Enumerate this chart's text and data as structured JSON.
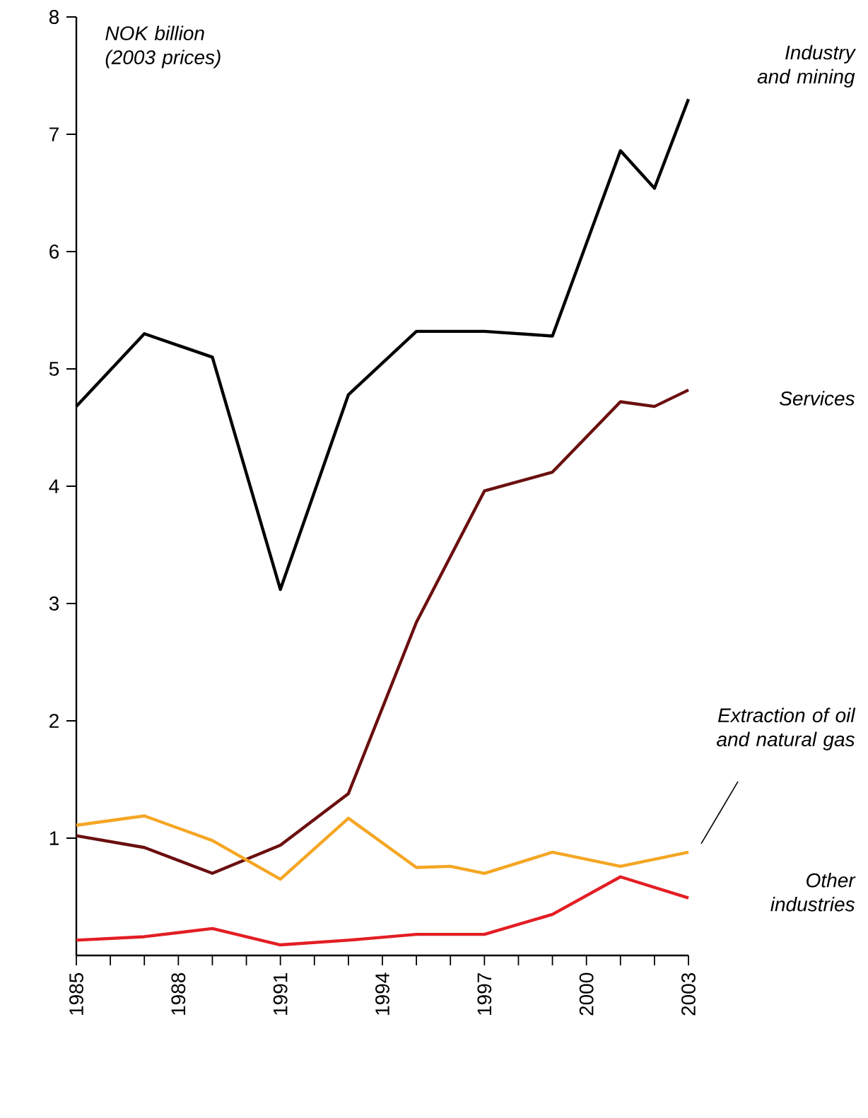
{
  "chart_data": {
    "type": "line",
    "ylabel": "NOK billion (2003 prices)",
    "xlim": [
      1985,
      2003
    ],
    "ylim": [
      0,
      8
    ],
    "xticks": [
      {
        "value": 1985,
        "label": "1985"
      },
      {
        "value": 1986,
        "label": null
      },
      {
        "value": 1987,
        "label": null
      },
      {
        "value": 1988,
        "label": "1988"
      },
      {
        "value": 1989,
        "label": null
      },
      {
        "value": 1990,
        "label": null
      },
      {
        "value": 1991,
        "label": "1991"
      },
      {
        "value": 1992,
        "label": null
      },
      {
        "value": 1993,
        "label": null
      },
      {
        "value": 1994,
        "label": "1994"
      },
      {
        "value": 1995,
        "label": null
      },
      {
        "value": 1996,
        "label": null
      },
      {
        "value": 1997,
        "label": "1997"
      },
      {
        "value": 1998,
        "label": null
      },
      {
        "value": 1999,
        "label": null
      },
      {
        "value": 2000,
        "label": "2000"
      },
      {
        "value": 2001,
        "label": null
      },
      {
        "value": 2002,
        "label": null
      },
      {
        "value": 2003,
        "label": "2003"
      }
    ],
    "yticks": [
      1,
      2,
      3,
      4,
      5,
      6,
      7,
      8
    ],
    "series": [
      {
        "name": "Industry and mining",
        "color": "#000000",
        "x": [
          1985,
          1987,
          1989,
          1991,
          1993,
          1995,
          1997,
          1999,
          2001,
          2002,
          2003
        ],
        "values": [
          4.68,
          5.3,
          5.1,
          3.12,
          4.78,
          5.32,
          5.32,
          5.28,
          6.86,
          6.54,
          7.3
        ]
      },
      {
        "name": "Services",
        "color": "#6b0f0f",
        "x": [
          1985,
          1987,
          1989,
          1991,
          1993,
          1995,
          1997,
          1999,
          2001,
          2002,
          2003
        ],
        "values": [
          1.02,
          0.92,
          0.7,
          0.94,
          1.38,
          2.84,
          3.96,
          4.12,
          4.72,
          4.68,
          4.82
        ]
      },
      {
        "name": "Extraction of oil and natural gas",
        "color": "#f5a623",
        "x": [
          1985,
          1987,
          1989,
          1991,
          1993,
          1995,
          1996,
          1997,
          1999,
          2001,
          2003
        ],
        "values": [
          1.11,
          1.19,
          0.98,
          0.65,
          1.17,
          0.75,
          0.76,
          0.7,
          0.88,
          0.76,
          0.88
        ]
      },
      {
        "name": "Other industries",
        "color": "#e31e24",
        "x": [
          1985,
          1987,
          1989,
          1991,
          1993,
          1995,
          1997,
          1999,
          2001,
          2003
        ],
        "values": [
          0.13,
          0.16,
          0.23,
          0.09,
          0.13,
          0.18,
          0.18,
          0.35,
          0.67,
          0.49
        ]
      }
    ]
  }
}
